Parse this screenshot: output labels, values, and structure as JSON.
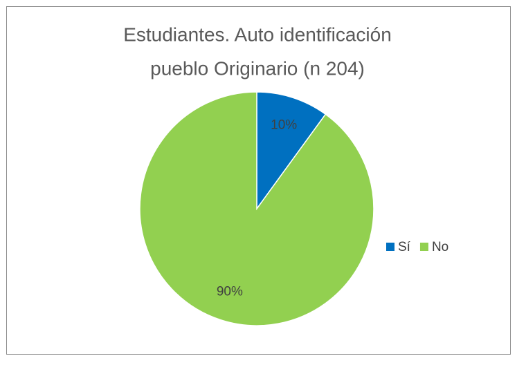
{
  "chart_data": {
    "type": "pie",
    "title": [
      "Estudiantes. Auto identificación",
      "pueblo Originario (n 204)"
    ],
    "categories": [
      "Sí",
      "No"
    ],
    "values": [
      10,
      90
    ],
    "value_labels": [
      "10%",
      "90%"
    ],
    "colors": [
      "#0070c0",
      "#92d050"
    ],
    "legend": "right"
  }
}
